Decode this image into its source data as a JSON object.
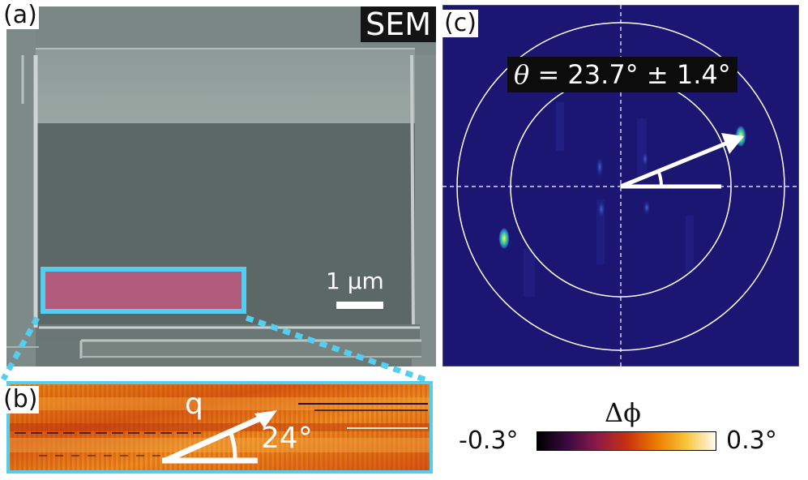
{
  "panel_a": {
    "label": "(a)",
    "tag": "SEM",
    "scale_bar": "1 μm"
  },
  "panel_b": {
    "label": "(b)",
    "vector_label": "q",
    "angle_label": "24°"
  },
  "panel_c": {
    "label": "(c)",
    "angle_text_prefix": "θ",
    "angle_text_value": " = 23.7° ± 1.4°"
  },
  "colorbar": {
    "title_symbol": "Δϕ",
    "min_label": "-0.3°",
    "max_label": "0.3°",
    "colors": [
      "#000000",
      "#3a0a3f",
      "#8a1a4a",
      "#c8300f",
      "#ec7a00",
      "#f7c43a",
      "#fffaf0"
    ]
  },
  "colors": {
    "highlight": "#55cdef",
    "fft_background": "#1a1672",
    "magenta_region": "#b05a7c"
  }
}
